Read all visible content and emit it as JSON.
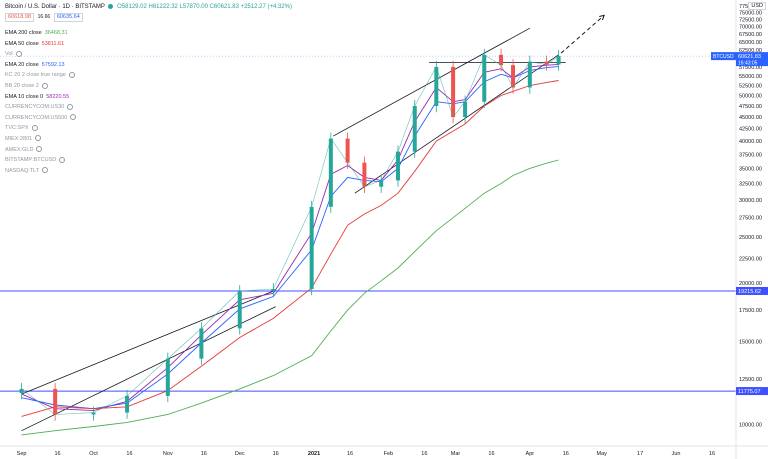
{
  "header": {
    "title": "Bitcoin / U.S. Dollar · 1D · BITSTAMP",
    "ohlc": "O58129.02 H61222.32 L57870.00 C60621.83 +2512.27 (+4.32%)",
    "sell_price": "60618.98",
    "spread": "16.66",
    "buy_price": "60635.64"
  },
  "currency_label": "USD",
  "indicators": [
    {
      "label": "EMA 200 close",
      "value": "36468.31",
      "color": "#4caf50"
    },
    {
      "label": "EMA 50 close",
      "value": "53811.61",
      "color": "#e53935"
    },
    {
      "label": "Vol",
      "value": "",
      "color": "#9598a1"
    },
    {
      "label": "EMA 20 close",
      "value": "57592.13",
      "color": "#2962ff"
    },
    {
      "label": "KC 20 2 close true range",
      "value": "",
      "color": "#9598a1"
    },
    {
      "label": "BB 20 close 2",
      "value": "",
      "color": "#9598a1"
    },
    {
      "label": "EMA 10 close 0",
      "value": "58220.55",
      "color": "#9c27b0"
    },
    {
      "label": "CURRENCYCOM:US30",
      "value": "",
      "color": "#9598a1"
    },
    {
      "label": "CURRENCYCOM:US500",
      "value": "",
      "color": "#9598a1"
    },
    {
      "label": "TVC:SPX",
      "value": "",
      "color": "#9598a1"
    },
    {
      "label": "MIEX:2801",
      "value": "",
      "color": "#9598a1"
    },
    {
      "label": "AMEX:GLD",
      "value": "",
      "color": "#9598a1"
    },
    {
      "label": "BITSTAMP:BTCUSD",
      "value": "",
      "color": "#9598a1"
    },
    {
      "label": "NASDAQ:TLT",
      "value": "",
      "color": "#9598a1"
    }
  ],
  "chart_data": {
    "type": "line",
    "title": "Bitcoin / U.S. Dollar · 1D · BITSTAMP",
    "ylabel": "USD",
    "ylim": [
      9000,
      79000
    ],
    "yscale": "log",
    "y_ticks": [
      10000,
      12500,
      15000,
      17500,
      20000,
      22500,
      25000,
      27500,
      30000,
      32500,
      35000,
      37500,
      40000,
      42500,
      45000,
      47500,
      50000,
      52500,
      55000,
      57500,
      60000,
      62500,
      65000,
      67500,
      70000,
      72500,
      75000,
      77500
    ],
    "x_ticks": [
      "Sep",
      "16",
      "Oct",
      "16",
      "Nov",
      "16",
      "Dec",
      "16",
      "2021",
      "16",
      "Feb",
      "16",
      "Mar",
      "16",
      "Apr",
      "16",
      "May",
      "17",
      "Jun",
      "16"
    ],
    "price_series": {
      "name": "BTCUSD",
      "x": [
        "2020-09-01",
        "2020-09-15",
        "2020-10-01",
        "2020-10-15",
        "2020-11-01",
        "2020-11-15",
        "2020-12-01",
        "2020-12-15",
        "2020-12-31",
        "2021-01-08",
        "2021-01-15",
        "2021-01-22",
        "2021-01-29",
        "2021-02-05",
        "2021-02-12",
        "2021-02-21",
        "2021-02-28",
        "2021-03-05",
        "2021-03-13",
        "2021-03-20",
        "2021-03-25",
        "2021-04-01",
        "2021-04-08",
        "2021-04-13"
      ],
      "y": [
        11900,
        10500,
        10600,
        11500,
        13800,
        16000,
        19200,
        19400,
        29000,
        40500,
        36000,
        32000,
        33000,
        38000,
        47500,
        57500,
        45000,
        48500,
        61000,
        58000,
        52000,
        59000,
        58200,
        60621.83
      ]
    },
    "ema_series": [
      {
        "name": "EMA 10 close 0",
        "color": "#9c27b0",
        "y": [
          11600,
          10800,
          10700,
          11200,
          13200,
          15500,
          18400,
          19000,
          25500,
          34000,
          35500,
          33500,
          33000,
          36500,
          44000,
          52000,
          48500,
          49000,
          56000,
          57000,
          54500,
          57500,
          58000,
          58220.55
        ]
      },
      {
        "name": "EMA 20 close",
        "color": "#2962ff",
        "y": [
          11400,
          11000,
          10800,
          11100,
          12800,
          14900,
          17600,
          18700,
          23500,
          30500,
          33500,
          33000,
          32800,
          35000,
          41000,
          48500,
          48000,
          48500,
          53500,
          55500,
          54500,
          56500,
          57300,
          57592.13
        ]
      },
      {
        "name": "EMA 50 close",
        "color": "#e53935",
        "y": [
          10400,
          10900,
          10800,
          10900,
          11800,
          13300,
          15300,
          16800,
          19500,
          23000,
          26500,
          28000,
          29200,
          31000,
          34500,
          40000,
          42000,
          43500,
          47500,
          50000,
          51000,
          52500,
          53300,
          53811.61
        ]
      },
      {
        "name": "EMA 200 close",
        "color": "#4caf50",
        "y": [
          9500,
          9700,
          9900,
          10100,
          10500,
          11100,
          11900,
          12700,
          14000,
          15800,
          17500,
          19000,
          20200,
          21500,
          23300,
          25800,
          27500,
          28800,
          31000,
          32500,
          33800,
          35000,
          35900,
          36468.31
        ]
      }
    ],
    "horizontal_levels": [
      {
        "value": 19215.62,
        "label": "19215.62",
        "color": "#3f51ff"
      },
      {
        "value": 11775.07,
        "label": "11775.07",
        "color": "#3f51ff"
      }
    ],
    "price_labels": [
      {
        "value": 60621.83,
        "label": "60621.83",
        "sub": "16:43:05",
        "symbol": "BTCUSD",
        "color": "#2962ff"
      }
    ],
    "trendlines": [
      {
        "from": [
          "2021-01-09",
          41000
        ],
        "to": [
          "2021-04-01",
          69500
        ]
      },
      {
        "from": [
          "2021-01-18",
          31000
        ],
        "to": [
          "2021-04-13",
          61000
        ]
      },
      {
        "from": [
          "2021-02-18",
          58800
        ],
        "to": [
          "2021-04-16",
          58800
        ]
      },
      {
        "from": [
          "2020-09-01",
          11600
        ],
        "to": [
          "2020-12-16",
          19300
        ]
      },
      {
        "from": [
          "2020-09-01",
          9700
        ],
        "to": [
          "2020-12-16",
          17800
        ]
      }
    ],
    "projection": {
      "from": [
        "2021-04-14",
        61500
      ],
      "to": [
        "2021-05-02",
        74000
      ]
    }
  }
}
